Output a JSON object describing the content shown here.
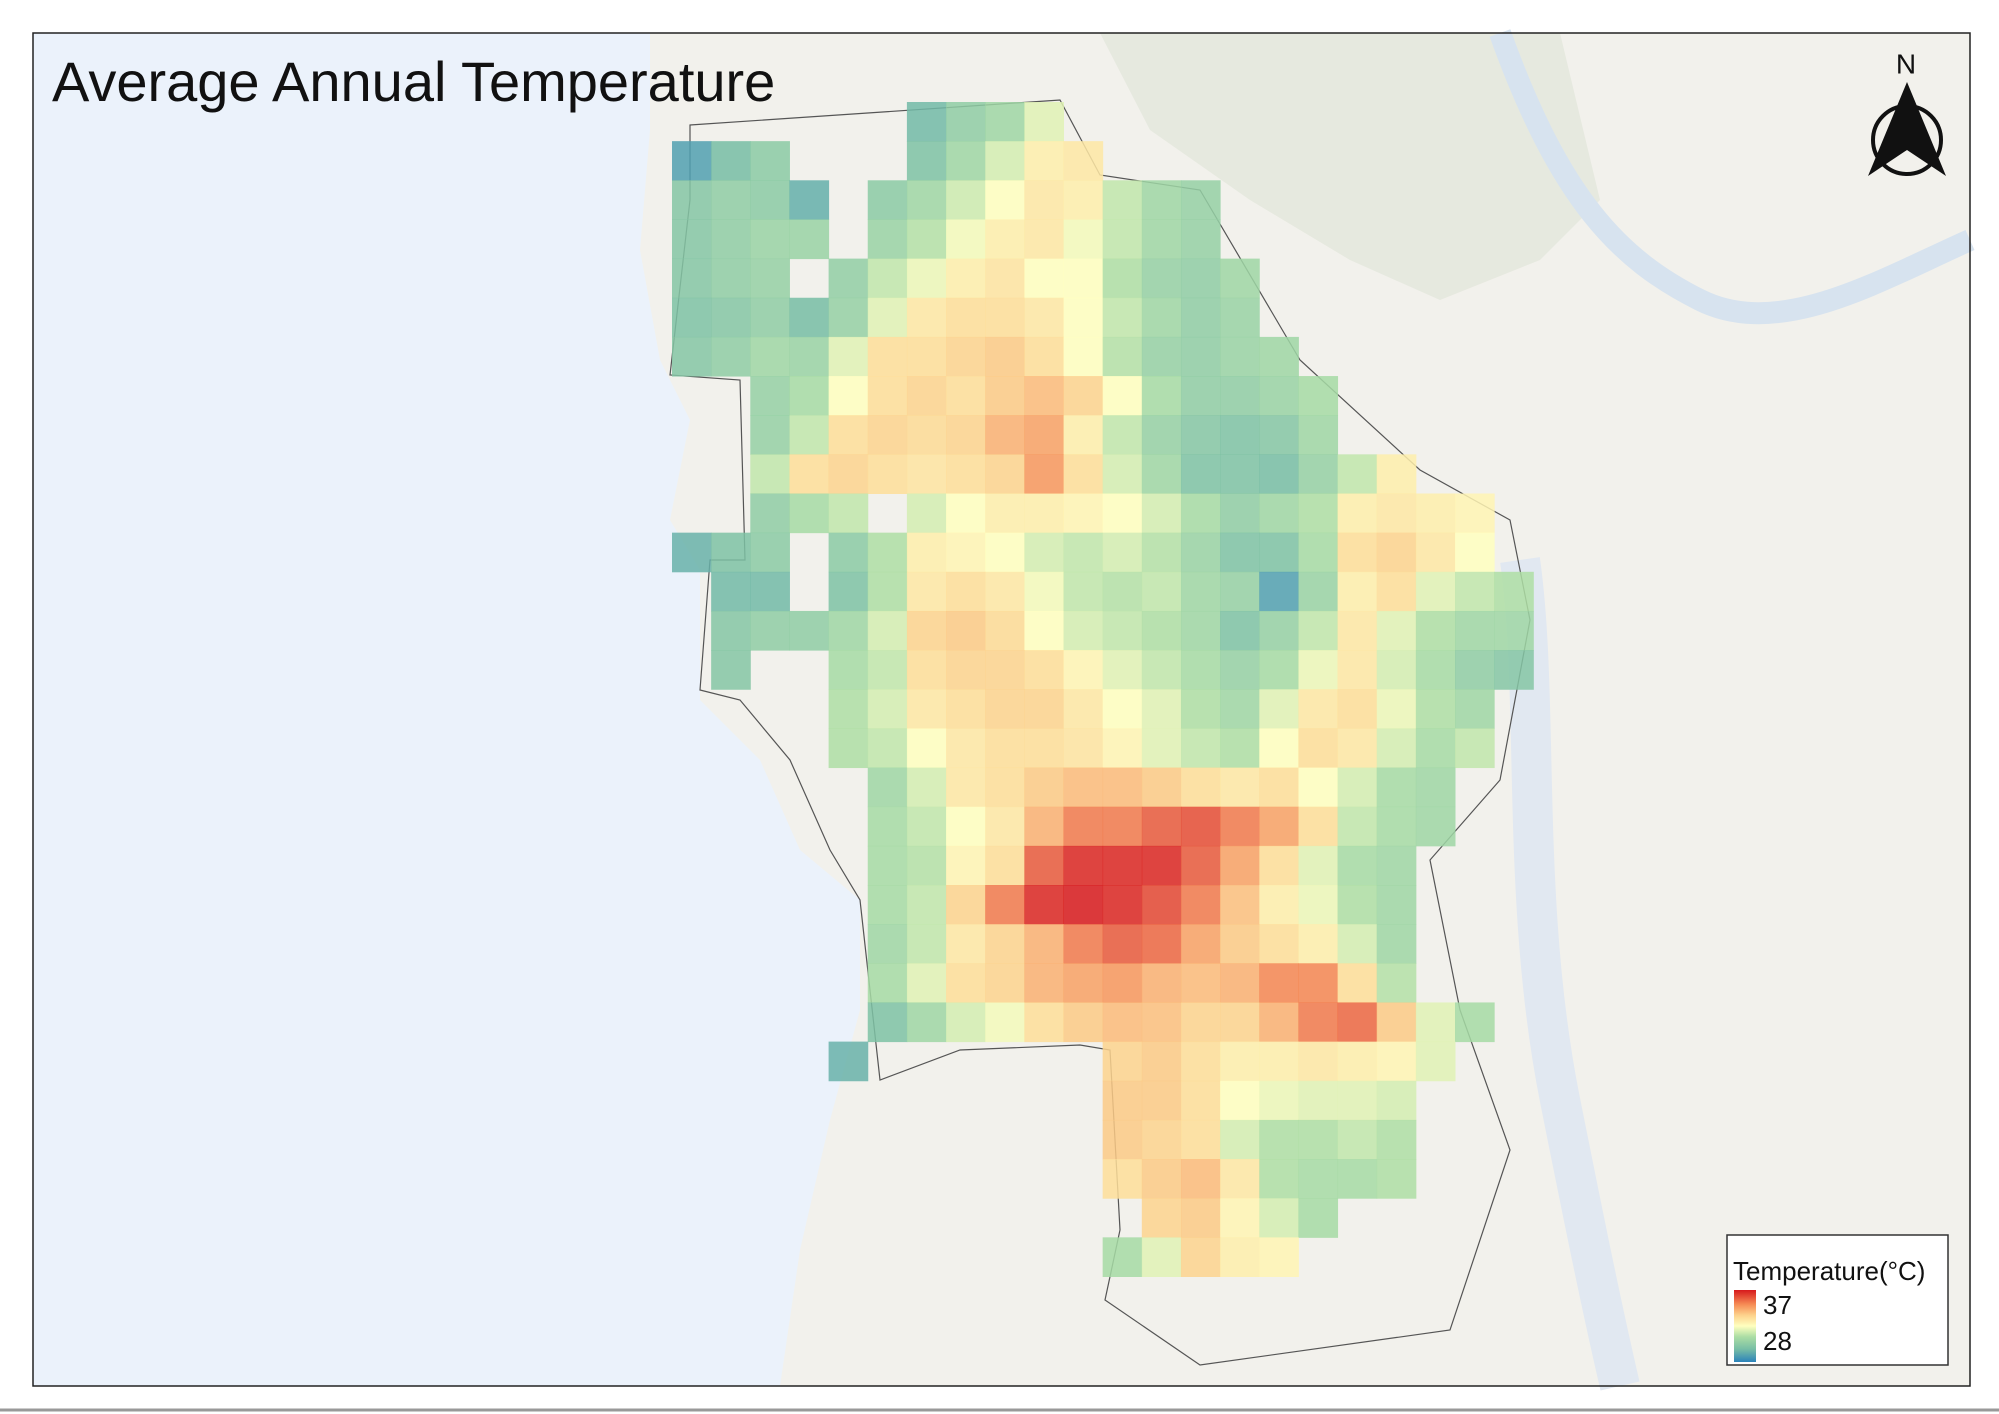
{
  "map": {
    "title": "Average Annual Temperature",
    "north": "N",
    "legend": {
      "title": "Temperature(°C)",
      "max": 37,
      "min": 28
    },
    "cells": [
      [
        null,
        null,
        null,
        null,
        null,
        null,
        29.5,
        30.3,
        30.8,
        32,
        null,
        null,
        null,
        null,
        null,
        null,
        null,
        null,
        null,
        null,
        null,
        null
      ],
      [
        28.8,
        29.6,
        30.2,
        null,
        null,
        null,
        29.8,
        30.8,
        31.8,
        33,
        33.2,
        null,
        null,
        null,
        null,
        null,
        null,
        null,
        null,
        null,
        null,
        null
      ],
      [
        30,
        30.3,
        30.2,
        29.2,
        null,
        30.2,
        30.8,
        31.7,
        32.5,
        33.2,
        33,
        31.5,
        30.8,
        30.5,
        null,
        null,
        null,
        null,
        null,
        null,
        null,
        null
      ],
      [
        30,
        30.3,
        30.6,
        30.6,
        null,
        30.6,
        31.3,
        32.3,
        33,
        33.2,
        32.3,
        31.5,
        30.8,
        30.5,
        null,
        null,
        null,
        null,
        null,
        null,
        null,
        null
      ],
      [
        30,
        30.3,
        30.5,
        null,
        30.4,
        31.5,
        32.2,
        33,
        33.3,
        32.5,
        32.5,
        31.2,
        30.5,
        30.3,
        30.8,
        null,
        null,
        null,
        null,
        null,
        null,
        null
      ],
      [
        29.8,
        30,
        30.3,
        29.6,
        30.5,
        32,
        33.2,
        33.5,
        33.5,
        33.2,
        32.5,
        31.5,
        30.8,
        30.3,
        30.6,
        null,
        null,
        null,
        null,
        null,
        null,
        null
      ],
      [
        30,
        30.3,
        30.8,
        30.6,
        32,
        33.5,
        33.5,
        33.8,
        34,
        33.5,
        32.5,
        31.3,
        30.5,
        30.3,
        30.6,
        30.8,
        null,
        null,
        null,
        null,
        null,
        null
      ],
      [
        null,
        null,
        30.5,
        31,
        32.5,
        33.5,
        33.8,
        33.5,
        34,
        34.3,
        33.8,
        32.5,
        31,
        30.3,
        30.3,
        30.6,
        31,
        null,
        null,
        null,
        null,
        null
      ],
      [
        null,
        null,
        30.5,
        31.5,
        33.5,
        33.8,
        33.6,
        33.8,
        34.5,
        34.8,
        33,
        31.5,
        30.5,
        30,
        29.8,
        30,
        30.8,
        null,
        null,
        null,
        null,
        null
      ],
      [
        null,
        null,
        31.5,
        33.5,
        33.8,
        33.5,
        33.3,
        33.5,
        33.8,
        35,
        33.5,
        31.8,
        30.8,
        29.8,
        29.8,
        29.6,
        30.5,
        31.5,
        33,
        null,
        null,
        null
      ],
      [
        null,
        null,
        30.3,
        31,
        31.5,
        null,
        31.8,
        32.5,
        33,
        33,
        32.8,
        32.5,
        31.8,
        31,
        30.3,
        30.8,
        31.2,
        33,
        33.2,
        33,
        32.8,
        null
      ],
      [
        29.3,
        29.8,
        30.2,
        null,
        30.2,
        31.2,
        33,
        32.8,
        32.5,
        31.8,
        31.5,
        31.8,
        31.3,
        30.6,
        29.8,
        29.8,
        31,
        33.5,
        33.8,
        33.2,
        32.5,
        null
      ],
      [
        null,
        29.5,
        29.5,
        null,
        29.8,
        31.2,
        33.2,
        33.5,
        33.2,
        32.3,
        31.5,
        31.3,
        31.5,
        30.8,
        30.5,
        28.8,
        30.6,
        33,
        33.5,
        32,
        31.5,
        31.2
      ],
      [
        null,
        30,
        30.3,
        30.3,
        30.8,
        31.8,
        33.8,
        34,
        33.6,
        32.5,
        31.8,
        31.5,
        31.2,
        30.8,
        29.8,
        30.5,
        31.5,
        33.2,
        32,
        31.2,
        30.8,
        30.8
      ],
      [
        null,
        30,
        null,
        null,
        31,
        31.5,
        33.5,
        33.8,
        33.8,
        33.5,
        32.8,
        32,
        31.5,
        31,
        30.5,
        31,
        32.2,
        33.2,
        31.8,
        31,
        30.3,
        30
      ],
      [
        null,
        null,
        null,
        null,
        31.2,
        31.8,
        33.2,
        33.5,
        33.8,
        33.8,
        33.2,
        32.5,
        32,
        31.2,
        30.8,
        32,
        33.2,
        33.5,
        32.2,
        31.2,
        30.8,
        null
      ],
      [
        null,
        null,
        null,
        null,
        31.2,
        31.5,
        32.5,
        33.2,
        33.5,
        33.5,
        33.3,
        32.8,
        32,
        31.5,
        31.2,
        32.5,
        33.5,
        33.2,
        31.8,
        31,
        31.5,
        null
      ],
      [
        null,
        null,
        null,
        null,
        null,
        30.8,
        31.8,
        33.2,
        33.5,
        34,
        34.3,
        34.3,
        34,
        33.5,
        33.2,
        33.5,
        32.5,
        31.8,
        31,
        30.8,
        null,
        null
      ],
      [
        null,
        null,
        null,
        null,
        null,
        31,
        31.5,
        32.5,
        33.2,
        34.5,
        35.5,
        35.5,
        36,
        36.2,
        35.5,
        34.8,
        33.5,
        31.5,
        31,
        30.8,
        null,
        null
      ],
      [
        null,
        null,
        null,
        null,
        null,
        31,
        31.3,
        32.8,
        33.5,
        36,
        36.8,
        36.8,
        36.8,
        36,
        34.8,
        33.5,
        32,
        31,
        30.8,
        null,
        null,
        null
      ],
      [
        null,
        null,
        null,
        null,
        null,
        31,
        31.5,
        33.8,
        35.5,
        36.8,
        37,
        36.8,
        36.3,
        35.5,
        34.2,
        33,
        32.2,
        31.2,
        30.8,
        null,
        null,
        null
      ],
      [
        null,
        null,
        null,
        null,
        null,
        30.8,
        31.5,
        33.2,
        33.8,
        34.5,
        35.5,
        36,
        35.8,
        34.8,
        34,
        33.5,
        33,
        31.8,
        30.8,
        null,
        null,
        null
      ],
      [
        null,
        null,
        null,
        null,
        null,
        31,
        32,
        33.5,
        33.8,
        34.5,
        34.8,
        35,
        34.5,
        34.3,
        34.5,
        35.3,
        35.3,
        33.5,
        31.3,
        null,
        null,
        null
      ],
      [
        null,
        null,
        null,
        null,
        null,
        29.8,
        30.8,
        31.8,
        32.3,
        33.5,
        34,
        34.3,
        34.2,
        33.8,
        33.8,
        34.5,
        35.5,
        35.8,
        34,
        32,
        31,
        null
      ],
      [
        null,
        null,
        null,
        null,
        29.3,
        null,
        null,
        null,
        null,
        null,
        null,
        33.8,
        34,
        33.5,
        33,
        33,
        33.2,
        33,
        32.8,
        32,
        null,
        null
      ],
      [
        null,
        null,
        null,
        null,
        null,
        null,
        null,
        null,
        null,
        null,
        null,
        34,
        34,
        33.5,
        32.5,
        32.2,
        32,
        32,
        31.8,
        null,
        null,
        null
      ],
      [
        null,
        null,
        null,
        null,
        null,
        null,
        null,
        null,
        null,
        null,
        null,
        34,
        33.8,
        33.5,
        31.8,
        31.2,
        31.2,
        31.5,
        31.2,
        null,
        null,
        null
      ],
      [
        null,
        null,
        null,
        null,
        null,
        null,
        null,
        null,
        null,
        null,
        null,
        33.5,
        34,
        34.3,
        33.2,
        31.2,
        31,
        31,
        31.2,
        null,
        null,
        null
      ],
      [
        null,
        null,
        null,
        null,
        null,
        null,
        null,
        null,
        null,
        null,
        null,
        null,
        33.8,
        34,
        32.8,
        31.8,
        31,
        null,
        null,
        null,
        null,
        null
      ],
      [
        null,
        null,
        null,
        null,
        null,
        null,
        null,
        null,
        null,
        null,
        null,
        31,
        32,
        33.8,
        33,
        32.8,
        null,
        null,
        null,
        null,
        null,
        null
      ]
    ]
  }
}
